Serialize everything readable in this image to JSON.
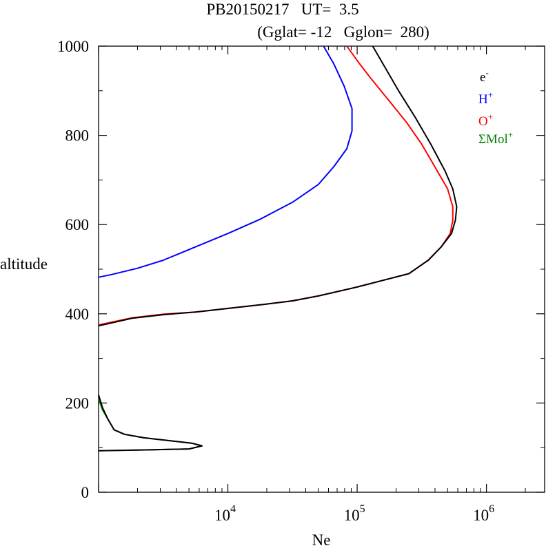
{
  "chart_data": {
    "type": "line",
    "title_line1": "PB20150217   UT=  3.5",
    "title_line2": "(Gglat= -12   Gglon=  280)",
    "xlabel": "Ne",
    "ylabel": "altitude",
    "x_scale": "log",
    "xlim_log10": [
      3.0,
      6.45
    ],
    "ylim": [
      0,
      1000
    ],
    "y_ticks": [
      0,
      200,
      400,
      600,
      800,
      1000
    ],
    "y_tick_labels": [
      "0",
      "200",
      "400",
      "600",
      "800",
      "1000"
    ],
    "x_ticks": [
      {
        "base": "10",
        "exp": "4",
        "log10": 4
      },
      {
        "base": "10",
        "exp": "5",
        "log10": 5
      },
      {
        "base": "10",
        "exp": "6",
        "log10": 6
      }
    ],
    "legend_position": "top-right",
    "series": [
      {
        "name": "e-",
        "label_base": "e",
        "label_sup": "-",
        "color": "#000000",
        "segments": [
          [
            [
              3.0,
              373
            ],
            [
              3.26,
              390
            ],
            [
              3.5,
              398
            ],
            [
              3.75,
              404
            ],
            [
              4.0,
              412
            ],
            [
              4.25,
              420
            ],
            [
              4.5,
              429
            ],
            [
              4.7,
              440
            ],
            [
              5.0,
              460
            ],
            [
              5.2,
              475
            ],
            [
              5.4,
              490
            ],
            [
              5.55,
              520
            ],
            [
              5.65,
              550
            ],
            [
              5.73,
              580
            ],
            [
              5.76,
              610
            ],
            [
              5.77,
              640
            ],
            [
              5.74,
              680
            ],
            [
              5.68,
              720
            ],
            [
              5.57,
              780
            ],
            [
              5.45,
              840
            ],
            [
              5.32,
              900
            ],
            [
              5.2,
              960
            ],
            [
              5.12,
              1000
            ]
          ],
          [
            [
              3.0,
              93
            ],
            [
              3.4,
              95
            ],
            [
              3.7,
              97
            ],
            [
              3.8,
              104
            ],
            [
              3.72,
              110
            ],
            [
              3.35,
              122
            ],
            [
              3.2,
              130
            ],
            [
              3.12,
              140
            ],
            [
              3.07,
              165
            ],
            [
              3.03,
              190
            ],
            [
              3.0,
              218
            ]
          ]
        ]
      },
      {
        "name": "H+",
        "label_base": "H",
        "label_sup": "+",
        "color": "#0000ff",
        "segments": [
          [
            [
              3.0,
              482
            ],
            [
              3.1,
              488
            ],
            [
              3.3,
              502
            ],
            [
              3.5,
              520
            ],
            [
              3.75,
              550
            ],
            [
              4.0,
              580
            ],
            [
              4.25,
              612
            ],
            [
              4.5,
              650
            ],
            [
              4.7,
              690
            ],
            [
              4.82,
              730
            ],
            [
              4.92,
              770
            ],
            [
              4.96,
              810
            ],
            [
              4.96,
              860
            ],
            [
              4.9,
              910
            ],
            [
              4.82,
              960
            ],
            [
              4.74,
              1000
            ]
          ]
        ]
      },
      {
        "name": "O+",
        "label_base": "O",
        "label_sup": "+",
        "color": "#ff0000",
        "segments": [
          [
            [
              3.0,
              375
            ],
            [
              3.26,
              391
            ],
            [
              3.5,
              399
            ],
            [
              3.75,
              404
            ],
            [
              4.0,
              412
            ],
            [
              4.25,
              420
            ],
            [
              4.5,
              429
            ],
            [
              4.7,
              440
            ],
            [
              5.0,
              460
            ],
            [
              5.2,
              475
            ],
            [
              5.4,
              490
            ],
            [
              5.55,
              520
            ],
            [
              5.65,
              550
            ],
            [
              5.72,
              580
            ],
            [
              5.74,
              610
            ],
            [
              5.74,
              640
            ],
            [
              5.7,
              680
            ],
            [
              5.62,
              720
            ],
            [
              5.5,
              780
            ],
            [
              5.38,
              830
            ],
            [
              5.24,
              880
            ],
            [
              5.1,
              930
            ],
            [
              5.02,
              960
            ],
            [
              4.92,
              1000
            ]
          ]
        ]
      },
      {
        "name": "ΣMol+",
        "label_base": "ΣMol",
        "label_sup": "+",
        "color": "#008000",
        "segments": [
          [
            [
              3.0,
              93
            ],
            [
              3.4,
              95
            ],
            [
              3.7,
              97
            ],
            [
              3.8,
              104
            ],
            [
              3.72,
              110
            ],
            [
              3.35,
              122
            ],
            [
              3.2,
              130
            ],
            [
              3.12,
              140
            ],
            [
              3.07,
              165
            ],
            [
              3.03,
              185
            ],
            [
              3.0,
              210
            ]
          ]
        ]
      }
    ]
  }
}
